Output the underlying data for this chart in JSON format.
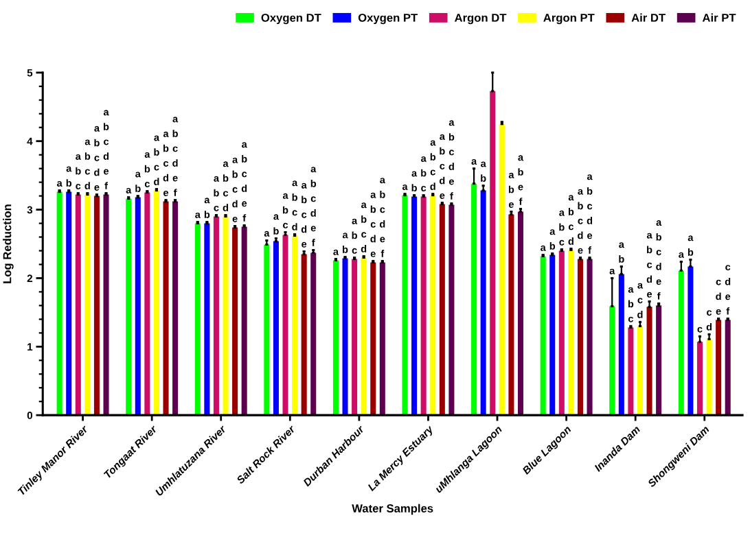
{
  "chart_data": {
    "type": "bar",
    "xlabel": "Water Samples",
    "ylabel": "Log Reduction",
    "categories": [
      "Tinley Manor River",
      "Tongaat River",
      "Umhlatuzana River",
      "Salt Rock River",
      "Durban Harbour",
      "La Mercy Estuary",
      "uMhlanga Lagoon",
      "Blue Lagoon",
      "Inanda Dam",
      "Shongweni Dam"
    ],
    "series": [
      {
        "name": "Oxygen DT",
        "color": "#00ff00",
        "values": [
          3.26,
          3.16,
          2.8,
          2.49,
          2.26,
          3.21,
          3.38,
          2.32,
          1.59,
          2.11
        ],
        "errors": [
          [
            3.26,
            3.28
          ],
          [
            3.16,
            3.18
          ],
          [
            2.8,
            2.82
          ],
          [
            2.49,
            2.55
          ],
          [
            2.26,
            2.28
          ],
          [
            3.21,
            3.23
          ],
          [
            3.38,
            3.6
          ],
          [
            2.32,
            2.34
          ],
          [
            1.59,
            2.0
          ],
          [
            2.11,
            2.24
          ]
        ],
        "value_labels": [
          "a",
          "a",
          "a",
          "a",
          "a",
          "a",
          "a",
          "a",
          "a",
          "a"
        ]
      },
      {
        "name": "Oxygen PT",
        "color": "#0000ff",
        "values": [
          3.26,
          3.18,
          2.8,
          2.54,
          2.29,
          3.19,
          3.28,
          2.34,
          2.06,
          2.17
        ],
        "errors": [
          [
            3.26,
            3.28
          ],
          [
            3.18,
            3.2
          ],
          [
            2.8,
            2.82
          ],
          [
            2.54,
            2.58
          ],
          [
            2.29,
            2.31
          ],
          [
            3.19,
            3.21
          ],
          [
            3.28,
            3.35
          ],
          [
            2.34,
            2.36
          ],
          [
            2.06,
            2.17
          ],
          [
            2.17,
            2.27
          ]
        ],
        "value_labels": [
          "a\nb",
          "a\nb",
          "a\nb",
          "a\nb",
          "a\nb",
          "a\nb",
          "a\nb",
          "a\nb",
          "a\nb",
          "a\nb"
        ]
      },
      {
        "name": "Argon DT",
        "color": "#cc0e66",
        "values": [
          3.22,
          3.25,
          2.9,
          2.63,
          2.28,
          3.19,
          4.73,
          2.4,
          1.28,
          1.07
        ],
        "errors": [
          [
            3.22,
            3.24
          ],
          [
            3.25,
            3.27
          ],
          [
            2.9,
            2.92
          ],
          [
            2.63,
            2.67
          ],
          [
            2.28,
            2.3
          ],
          [
            3.19,
            3.21
          ],
          [
            4.73,
            5.0
          ],
          [
            2.4,
            2.42
          ],
          [
            1.28,
            1.3
          ],
          [
            1.07,
            1.15
          ]
        ],
        "value_labels": [
          "a\nb\nc",
          "a\nb\nc",
          "a\nb\nc",
          "a\nb\nc",
          "a\nb\nc",
          "a\nb\nc",
          null,
          "a\nb\nc",
          "a\nb\nc",
          "c"
        ]
      },
      {
        "name": "Argon PT",
        "color": "#ffff00",
        "values": [
          3.22,
          3.28,
          2.9,
          2.62,
          2.3,
          3.21,
          4.25,
          2.41,
          1.3,
          1.11
        ],
        "errors": [
          [
            3.22,
            3.24
          ],
          [
            3.28,
            3.3
          ],
          [
            2.9,
            2.92
          ],
          [
            2.62,
            2.64
          ],
          [
            2.3,
            2.32
          ],
          [
            3.21,
            3.23
          ],
          [
            4.25,
            4.28
          ],
          [
            2.41,
            2.43
          ],
          [
            1.3,
            1.36
          ],
          [
            1.11,
            1.18
          ]
        ],
        "value_labels": [
          "a\nb\nc\nd",
          "a\nb\nc\nd",
          "a\nb\nc\nd",
          "a\nb\nc\nd",
          "a\nb\nc\nd",
          "a\nb\nc\nd",
          null,
          "a\nb\nc\nd",
          "a\nc\nd",
          "c\nd"
        ]
      },
      {
        "name": "Air DT",
        "color": "#9b0000",
        "values": [
          3.2,
          3.12,
          2.74,
          2.35,
          2.23,
          3.08,
          2.93,
          2.28,
          1.58,
          1.39
        ],
        "errors": [
          [
            3.2,
            3.22
          ],
          [
            3.12,
            3.14
          ],
          [
            2.74,
            2.76
          ],
          [
            2.35,
            2.39
          ],
          [
            2.23,
            2.25
          ],
          [
            3.08,
            3.1
          ],
          [
            2.93,
            2.97
          ],
          [
            2.28,
            2.3
          ],
          [
            1.58,
            1.66
          ],
          [
            1.39,
            1.41
          ]
        ],
        "value_labels": [
          "a\nb\nc\nd\ne",
          "a\nb\nc\nd\ne",
          "a\nb\nc\nd\ne",
          "a\nb\nc\nd\ne",
          "a\nb\nc\nd\ne",
          "a\nb\nc\nd\ne",
          "a\nb\ne",
          "a\nb\nc\nd\ne",
          "a\nb\nc\nd\ne",
          "c\nd\ne"
        ]
      },
      {
        "name": "Air PT",
        "color": "#5e0050",
        "values": [
          3.22,
          3.12,
          2.75,
          2.37,
          2.23,
          3.07,
          2.97,
          2.28,
          1.6,
          1.39
        ],
        "errors": [
          [
            3.22,
            3.24
          ],
          [
            3.12,
            3.14
          ],
          [
            2.75,
            2.77
          ],
          [
            2.37,
            2.41
          ],
          [
            2.23,
            2.25
          ],
          [
            3.07,
            3.09
          ],
          [
            2.97,
            3.01
          ],
          [
            2.28,
            2.3
          ],
          [
            1.6,
            1.63
          ],
          [
            1.39,
            1.41
          ]
        ],
        "value_labels": [
          "a\nb\nc\nd\ne\nf",
          "a\nb\nc\nd\ne\nf",
          "a\nb\nc\nd\ne\nf",
          "a\nb\nc\nd\ne\nf",
          "a\nb\nc\nd\ne\nf",
          "a\nb\nc\nd\ne\nf",
          "a\nb\ne\nf",
          "a\nb\nc\nd\ne\nf",
          "a\nb\nc\nd\ne\nf",
          "c\nd\ne\nf"
        ]
      }
    ],
    "ylim": [
      0,
      5
    ],
    "yticks": [
      0,
      {
        "value": 0.2,
        "label": null
      },
      {
        "value": 0.4,
        "label": null
      },
      {
        "value": 0.6,
        "label": null
      },
      {
        "value": 0.8,
        "label": null
      },
      1,
      {
        "value": 1.2,
        "label": null
      },
      {
        "value": 1.4,
        "label": null
      },
      {
        "value": 1.6,
        "label": null
      },
      {
        "value": 1.8,
        "label": null
      },
      2,
      {
        "value": 2.2,
        "label": null
      },
      {
        "value": 2.4,
        "label": null
      },
      {
        "value": 2.6,
        "label": null
      },
      {
        "value": 2.8,
        "label": null
      },
      3,
      {
        "value": 3.2,
        "label": null
      },
      {
        "value": 3.4,
        "label": null
      },
      {
        "value": 3.6,
        "label": null
      },
      {
        "value": 3.8,
        "label": null
      },
      4,
      {
        "value": 4.2,
        "label": null
      },
      {
        "value": 4.4,
        "label": null
      },
      {
        "value": 4.6,
        "label": null
      },
      {
        "value": 4.8,
        "label": null
      },
      5
    ],
    "legend": "top right"
  }
}
